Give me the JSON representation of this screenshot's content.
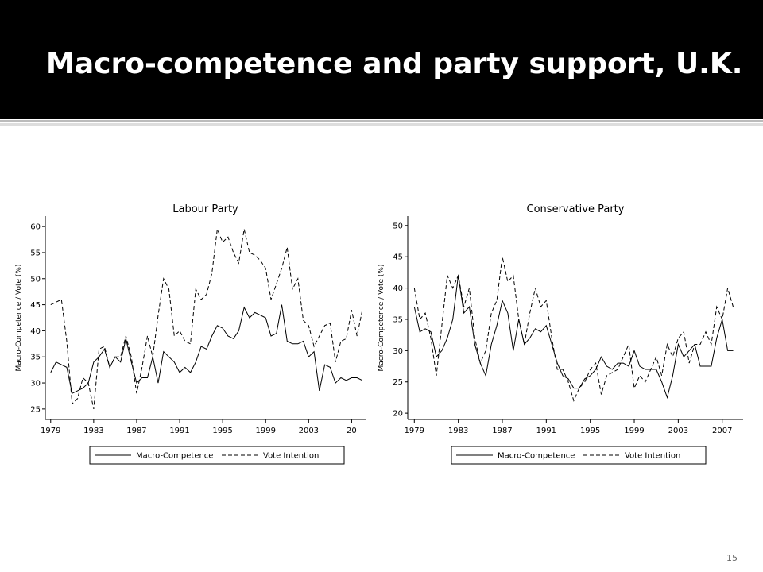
{
  "slide": {
    "title": "Macro-competence and party support, U.K.",
    "page_number": "15"
  },
  "chart_data": [
    {
      "type": "line",
      "title": "Labour Party",
      "y_label": "Macro-Competence / Vote (%)",
      "x": [
        1979,
        1979.5,
        1980,
        1980.5,
        1981,
        1981.5,
        1982,
        1982.5,
        1983,
        1983.5,
        1984,
        1984.5,
        1985,
        1985.5,
        1986,
        1986.5,
        1987,
        1987.5,
        1988,
        1988.5,
        1989,
        1989.5,
        1990,
        1990.5,
        1991,
        1991.5,
        1992,
        1992.5,
        1993,
        1993.5,
        1994,
        1994.5,
        1995,
        1995.5,
        1996,
        1996.5,
        1997,
        1997.5,
        1998,
        1998.5,
        1999,
        1999.5,
        2000,
        2000.5,
        2001,
        2001.5,
        2002,
        2002.5,
        2003,
        2003.5,
        2004,
        2004.5,
        2005,
        2005.5,
        2006,
        2006.5,
        2007,
        2007.5,
        2008
      ],
      "series": [
        {
          "name": "Macro-Competence",
          "color": "#000000",
          "line_style": "solid",
          "values": [
            32,
            34,
            33.5,
            33,
            28,
            28.5,
            29,
            30,
            34,
            35,
            36.5,
            33,
            35,
            34,
            38.5,
            34,
            30,
            31,
            31,
            35,
            30,
            36,
            35,
            34,
            32,
            33,
            32,
            34,
            37,
            36.5,
            39,
            41,
            40.5,
            39,
            38.5,
            40,
            44.5,
            42.5,
            43.5,
            43,
            42.5,
            39,
            39.5,
            45,
            38,
            37.5,
            37.5,
            38,
            35,
            36,
            28.5,
            33.5,
            33,
            30,
            31,
            30.5,
            31,
            31,
            30.5
          ]
        },
        {
          "name": "Vote Intention",
          "color": "#000000",
          "line_style": "dashed",
          "values": [
            45,
            45.5,
            46,
            38,
            26,
            27,
            31,
            30,
            25,
            36.5,
            37,
            33,
            35,
            35,
            39,
            35,
            28,
            33,
            39,
            35,
            43,
            50,
            48,
            39,
            40,
            38,
            37.5,
            48,
            46,
            47,
            51,
            59.5,
            57,
            58,
            55,
            53,
            59.5,
            55,
            54.5,
            53.5,
            52,
            46,
            49,
            52,
            56,
            48,
            50,
            42,
            41,
            37,
            39,
            41,
            41.5,
            34,
            38,
            38.5,
            44,
            39,
            44
          ]
        }
      ],
      "xlim": [
        1978.5,
        2008.3
      ],
      "xticks": [
        1979,
        1983,
        1987,
        1991,
        1995,
        1999,
        2003,
        {
          "value": 2007,
          "label": "20"
        }
      ],
      "ylim": [
        23,
        62
      ],
      "yticks": [
        25,
        30,
        35,
        40,
        45,
        50,
        55,
        60
      ],
      "legend": "bottom"
    },
    {
      "type": "line",
      "title": "Conservative Party",
      "y_label": "Macro-Competence / Vote (%)",
      "x": [
        1979,
        1979.5,
        1980,
        1980.5,
        1981,
        1981.5,
        1982,
        1982.5,
        1983,
        1983.5,
        1984,
        1984.5,
        1985,
        1985.5,
        1986,
        1986.5,
        1987,
        1987.5,
        1988,
        1988.5,
        1989,
        1989.5,
        1990,
        1990.5,
        1991,
        1991.5,
        1992,
        1992.5,
        1993,
        1993.5,
        1994,
        1994.5,
        1995,
        1995.5,
        1996,
        1996.5,
        1997,
        1997.5,
        1998,
        1998.5,
        1999,
        1999.5,
        2000,
        2000.5,
        2001,
        2001.5,
        2002,
        2002.5,
        2003,
        2003.5,
        2004,
        2004.5,
        2005,
        2005.5,
        2006,
        2006.5,
        2007,
        2007.5,
        2008
      ],
      "series": [
        {
          "name": "Macro-Competence",
          "color": "#000000",
          "line_style": "solid",
          "values": [
            37,
            33,
            33.5,
            33,
            29,
            30,
            32,
            35,
            42,
            36,
            37,
            31,
            28,
            26,
            31,
            34,
            38,
            36,
            30,
            35,
            31,
            32,
            33.5,
            33,
            34,
            31,
            28,
            26,
            25.5,
            24,
            24,
            25.5,
            26,
            27,
            29,
            27.5,
            27,
            28,
            28,
            27.5,
            30,
            27.5,
            27,
            27,
            27,
            25,
            22.5,
            26,
            31,
            29,
            30,
            31,
            27.5,
            27.5,
            27.5,
            32,
            35,
            30,
            30
          ]
        },
        {
          "name": "Vote Intention",
          "color": "#000000",
          "line_style": "dashed",
          "values": [
            40,
            35,
            36,
            32,
            26,
            34,
            42,
            40,
            42,
            37,
            40,
            32,
            28,
            30,
            36,
            38,
            45,
            41,
            42,
            35,
            31,
            36,
            40,
            37,
            38,
            32,
            27,
            27,
            25,
            22,
            24,
            25,
            27,
            28,
            23,
            26,
            26.5,
            27,
            29,
            31,
            24,
            26,
            25,
            27,
            29,
            26,
            31,
            29,
            32,
            33,
            28,
            31,
            31,
            33,
            31,
            37,
            35,
            40,
            37
          ]
        }
      ],
      "xlim": [
        1978.4,
        2008.9
      ],
      "xticks": [
        1979,
        1983,
        1987,
        1991,
        1995,
        1999,
        2003,
        2007
      ],
      "ylim": [
        19,
        51.5
      ],
      "yticks": [
        20,
        25,
        30,
        35,
        40,
        45,
        50
      ],
      "legend": "bottom"
    }
  ]
}
